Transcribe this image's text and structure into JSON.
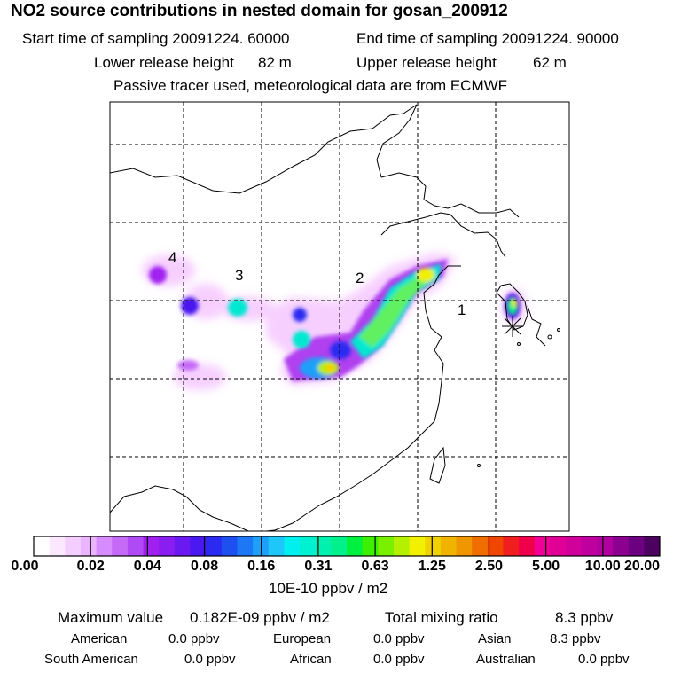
{
  "header": {
    "title": "NO2 source contributions in nested domain for gosan_200912",
    "start_label": "Start time of sampling 20091224. 60000",
    "end_label": "End time of sampling 20091224. 90000",
    "lower_label": "Lower release height",
    "lower_value": "82 m",
    "upper_label": "Upper release height",
    "upper_value": "62 m",
    "note": "Passive tracer used, meteorological data are from ECMWF"
  },
  "chart_data": {
    "type": "heatmap",
    "variable": "NO2 source contribution",
    "source_labels": [
      "1",
      "2",
      "3",
      "4"
    ],
    "colorbar": {
      "unit_label": "10E-10 ppbv / m2",
      "ticks": [
        "0.00",
        "0.02",
        "0.04",
        "0.08",
        "0.16",
        "0.31",
        "0.63",
        "1.25",
        "2.50",
        "5.00",
        "10.00",
        "20.00"
      ],
      "colors": [
        "#ffffff",
        "#fbe8ff",
        "#f3ceff",
        "#eab4ff",
        "#d68cff",
        "#c46af7",
        "#b04af5",
        "#a020f0",
        "#8a1ef0",
        "#6a1af0",
        "#4a18f0",
        "#2a2af0",
        "#1e50f0",
        "#1e78f5",
        "#1ea0f8",
        "#1ec6fa",
        "#00f0f0",
        "#00f0d2",
        "#00f0b0",
        "#00f08c",
        "#00f040",
        "#3cf000",
        "#78f000",
        "#b4f000",
        "#f0f000",
        "#f0d200",
        "#f0b400",
        "#f09600",
        "#f06e00",
        "#f04600",
        "#f01e1e",
        "#f0004a",
        "#f00096",
        "#e00096",
        "#d0009a",
        "#c0009e",
        "#b000a0",
        "#8c0090",
        "#6c0080",
        "#4c0060"
      ]
    },
    "grid": true,
    "receptor": "gosan"
  },
  "footer": {
    "max_label": "Maximum value",
    "max_value": "0.182E-09 ppbv / m2",
    "total_label": "Total mixing ratio",
    "total_value": "8.3 ppbv",
    "regions": [
      {
        "name": "American",
        "value": "0.0 ppbv"
      },
      {
        "name": "European",
        "value": "0.0 ppbv"
      },
      {
        "name": "Asian",
        "value": "8.3 ppbv"
      },
      {
        "name": "South American",
        "value": "0.0 ppbv"
      },
      {
        "name": "African",
        "value": "0.0 ppbv"
      },
      {
        "name": "Australian",
        "value": "0.0 ppbv"
      }
    ]
  }
}
